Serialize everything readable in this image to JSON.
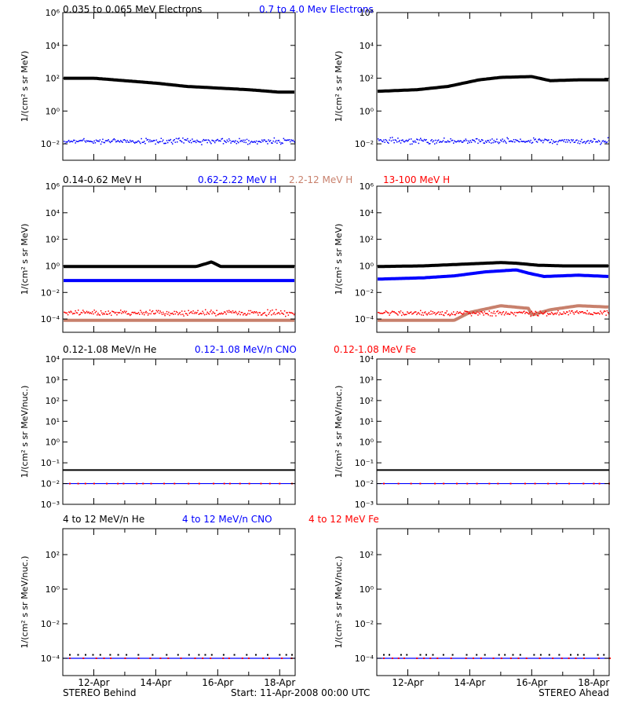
{
  "footer": {
    "left": "STEREO Behind",
    "center": "Start: 11-Apr-2008 00:00 UTC",
    "right": "STEREO Ahead"
  },
  "x_ticks": [
    "12-Apr",
    "14-Apr",
    "16-Apr",
    "18-Apr"
  ],
  "colors": {
    "black": "#000000",
    "blue": "#0000ff",
    "tan": "#c8806c",
    "red": "#ff0000"
  },
  "rows": [
    {
      "legend": [
        {
          "text": "0.035 to 0.065 MeV Electrons",
          "color": "black"
        },
        {
          "text": "0.7 to 4.0 Mev Electrons",
          "color": "blue"
        }
      ],
      "ylabel": "1/(cm² s sr MeV)",
      "ylog": [
        -3,
        6
      ],
      "yticks": [
        {
          "exp": -2,
          "label": "10⁻²"
        },
        {
          "exp": 0,
          "label": "10⁰"
        },
        {
          "exp": 2,
          "label": "10²"
        },
        {
          "exp": 4,
          "label": "10⁴"
        },
        {
          "exp": 6,
          "label": "10⁶"
        }
      ]
    },
    {
      "legend": [
        {
          "text": "0.14-0.62 MeV H",
          "color": "black"
        },
        {
          "text": "0.62-2.22 MeV H",
          "color": "blue"
        },
        {
          "text": "2.2-12 MeV H",
          "color": "tan"
        },
        {
          "text": "13-100 MeV H",
          "color": "red"
        }
      ],
      "ylabel": "1/(cm² s sr MeV)",
      "ylog": [
        -5,
        6
      ],
      "yticks": [
        {
          "exp": -4,
          "label": "10⁻⁴"
        },
        {
          "exp": -2,
          "label": "10⁻²"
        },
        {
          "exp": 0,
          "label": "10⁰"
        },
        {
          "exp": 2,
          "label": "10²"
        },
        {
          "exp": 4,
          "label": "10⁴"
        },
        {
          "exp": 6,
          "label": "10⁶"
        }
      ]
    },
    {
      "legend": [
        {
          "text": "0.12-1.08 MeV/n He",
          "color": "black"
        },
        {
          "text": "0.12-1.08 MeV/n CNO",
          "color": "blue"
        },
        {
          "text": "0.12-1.08 MeV Fe",
          "color": "red"
        }
      ],
      "ylabel": "1/(cm² s sr MeV/nuc.)",
      "ylog": [
        -3,
        4
      ],
      "yticks": [
        {
          "exp": -3,
          "label": "10⁻³"
        },
        {
          "exp": -2,
          "label": "10⁻²"
        },
        {
          "exp": -1,
          "label": "10⁻¹"
        },
        {
          "exp": 0,
          "label": "10⁰"
        },
        {
          "exp": 1,
          "label": "10¹"
        },
        {
          "exp": 2,
          "label": "10²"
        },
        {
          "exp": 3,
          "label": "10³"
        },
        {
          "exp": 4,
          "label": "10⁴"
        }
      ]
    },
    {
      "legend": [
        {
          "text": "4 to 12 MeV/n He",
          "color": "black"
        },
        {
          "text": "4 to 12 MeV/n CNO",
          "color": "blue"
        },
        {
          "text": "4 to 12 MeV Fe",
          "color": "red"
        }
      ],
      "ylabel": "1/(cm² s sr MeV/nuc.)",
      "ylog": [
        -5,
        3.5
      ],
      "yticks": [
        {
          "exp": -4,
          "label": "10⁻⁴"
        },
        {
          "exp": -2,
          "label": "10⁻²"
        },
        {
          "exp": 0,
          "label": "10⁰"
        },
        {
          "exp": 2,
          "label": "10²"
        }
      ]
    }
  ],
  "chart_data": [
    {
      "type": "scatter",
      "spacecraft": "STEREO Behind",
      "x_unit": "day of April 2008",
      "xlim": [
        11,
        18.5
      ],
      "ylog": [
        -3,
        6
      ],
      "series": [
        {
          "name": "0.035 to 0.065 MeV Electrons",
          "color": "black",
          "style": "band",
          "x": [
            11,
            12,
            13,
            14,
            15,
            16,
            17,
            18,
            18.5
          ],
          "log10y": [
            2.0,
            2.0,
            1.85,
            1.7,
            1.5,
            1.4,
            1.3,
            1.15,
            1.15
          ]
        },
        {
          "name": "0.7 to 4.0 Mev Electrons",
          "color": "blue",
          "style": "noisy",
          "x": [
            11,
            18.5
          ],
          "log10y": [
            -1.8,
            -1.8
          ]
        }
      ]
    },
    {
      "type": "scatter",
      "spacecraft": "STEREO Ahead",
      "x_unit": "day of April 2008",
      "xlim": [
        11,
        18.5
      ],
      "ylog": [
        -3,
        6
      ],
      "series": [
        {
          "name": "0.035 to 0.065 MeV Electrons",
          "color": "black",
          "style": "band",
          "x": [
            11,
            12.3,
            13.3,
            14.3,
            15.0,
            16.0,
            16.6,
            17.5,
            18.5
          ],
          "log10y": [
            1.2,
            1.3,
            1.5,
            1.9,
            2.05,
            2.1,
            1.85,
            1.9,
            1.9
          ]
        },
        {
          "name": "0.7 to 4.0 Mev Electrons",
          "color": "blue",
          "style": "noisy",
          "x": [
            11,
            18.5
          ],
          "log10y": [
            -1.8,
            -1.8
          ]
        }
      ]
    },
    {
      "type": "scatter",
      "spacecraft": "STEREO Behind",
      "x_unit": "day of April 2008",
      "xlim": [
        11,
        18.5
      ],
      "ylog": [
        -5,
        6
      ],
      "series": [
        {
          "name": "0.14-0.62 MeV H",
          "color": "black",
          "style": "band",
          "x": [
            11,
            15.3,
            15.6,
            15.8,
            16.1,
            18.5
          ],
          "log10y": [
            -0.05,
            -0.05,
            0.15,
            0.3,
            -0.05,
            -0.05
          ]
        },
        {
          "name": "0.62-2.22 MeV H",
          "color": "blue",
          "style": "band",
          "x": [
            11,
            18.5
          ],
          "log10y": [
            -1.1,
            -1.1
          ]
        },
        {
          "name": "2.2-12 MeV H",
          "color": "tan",
          "style": "band",
          "x": [
            11,
            18.5
          ],
          "log10y": [
            -4.1,
            -4.1
          ]
        },
        {
          "name": "13-100 MeV H",
          "color": "red",
          "style": "noisy",
          "x": [
            11,
            18.5
          ],
          "log10y": [
            -3.5,
            -3.5
          ]
        }
      ]
    },
    {
      "type": "scatter",
      "spacecraft": "STEREO Ahead",
      "x_unit": "day of April 2008",
      "xlim": [
        11,
        18.5
      ],
      "ylog": [
        -5,
        6
      ],
      "series": [
        {
          "name": "0.14-0.62 MeV H",
          "color": "black",
          "style": "band",
          "x": [
            11,
            12.5,
            14,
            15,
            15.5,
            16.2,
            17,
            18.5
          ],
          "log10y": [
            -0.05,
            0.0,
            0.15,
            0.25,
            0.2,
            0.05,
            0.0,
            0.0
          ]
        },
        {
          "name": "0.62-2.22 MeV H",
          "color": "blue",
          "style": "band",
          "x": [
            11,
            12.5,
            13.5,
            14.5,
            15.5,
            15.9,
            16.4,
            17.5,
            18.5
          ],
          "log10y": [
            -1.0,
            -0.9,
            -0.75,
            -0.45,
            -0.3,
            -0.55,
            -0.8,
            -0.7,
            -0.8
          ]
        },
        {
          "name": "2.2-12 MeV H",
          "color": "tan",
          "style": "band",
          "x": [
            11,
            13.5,
            14.0,
            14.5,
            15.0,
            15.9,
            16.0,
            16.6,
            17.5,
            18.5
          ],
          "log10y": [
            -4.1,
            -4.1,
            -3.5,
            -3.25,
            -3.0,
            -3.2,
            -3.7,
            -3.3,
            -3.0,
            -3.1
          ]
        },
        {
          "name": "13-100 MeV H",
          "color": "red",
          "style": "noisy",
          "x": [
            11,
            18.5
          ],
          "log10y": [
            -3.5,
            -3.5
          ]
        }
      ]
    },
    {
      "type": "scatter",
      "spacecraft": "STEREO Behind",
      "x_unit": "day of April 2008",
      "xlim": [
        11,
        18.5
      ],
      "ylog": [
        -3,
        4
      ],
      "series": [
        {
          "name": "0.12-1.08 MeV/n He",
          "color": "black",
          "style": "line",
          "x": [
            11,
            18.5
          ],
          "log10y": [
            -1.35,
            -1.35
          ]
        },
        {
          "name": "0.12-1.08 MeV/n CNO",
          "color": "blue",
          "style": "line",
          "x": [
            11,
            18.5
          ],
          "log10y": [
            -2.0,
            -2.0
          ]
        },
        {
          "name": "0.12-1.08 MeV Fe",
          "color": "red",
          "style": "sparse",
          "x": [
            11,
            18.5
          ],
          "log10y": [
            -2.0,
            -2.0
          ]
        }
      ]
    },
    {
      "type": "scatter",
      "spacecraft": "STEREO Ahead",
      "x_unit": "day of April 2008",
      "xlim": [
        11,
        18.5
      ],
      "ylog": [
        -3,
        4
      ],
      "series": [
        {
          "name": "0.12-1.08 MeV/n He",
          "color": "black",
          "style": "line",
          "x": [
            11,
            18.5
          ],
          "log10y": [
            -1.35,
            -1.35
          ]
        },
        {
          "name": "0.12-1.08 MeV/n CNO",
          "color": "blue",
          "style": "line",
          "x": [
            11,
            18.5
          ],
          "log10y": [
            -2.0,
            -2.0
          ]
        },
        {
          "name": "0.12-1.08 MeV Fe",
          "color": "red",
          "style": "sparse",
          "x": [
            11,
            18.5
          ],
          "log10y": [
            -2.0,
            -2.0
          ]
        }
      ]
    },
    {
      "type": "scatter",
      "spacecraft": "STEREO Behind",
      "x_unit": "day of April 2008",
      "xlim": [
        11,
        18.5
      ],
      "ylog": [
        -5,
        3.5
      ],
      "series": [
        {
          "name": "4 to 12 MeV/n He",
          "color": "black",
          "style": "sparse",
          "x": [
            11,
            18.5
          ],
          "log10y": [
            -3.8,
            -3.8
          ]
        },
        {
          "name": "4 to 12 MeV/n CNO",
          "color": "blue",
          "style": "line",
          "x": [
            11,
            18.5
          ],
          "log10y": [
            -4.0,
            -4.0
          ]
        },
        {
          "name": "4 to 12 MeV Fe",
          "color": "red",
          "style": "sparse",
          "x": [
            11,
            18.5
          ],
          "log10y": [
            -4.0,
            -4.0
          ]
        }
      ]
    },
    {
      "type": "scatter",
      "spacecraft": "STEREO Ahead",
      "x_unit": "day of April 2008",
      "xlim": [
        11,
        18.5
      ],
      "ylog": [
        -5,
        3.5
      ],
      "series": [
        {
          "name": "4 to 12 MeV/n He",
          "color": "black",
          "style": "sparse",
          "x": [
            11,
            18.5
          ],
          "log10y": [
            -3.8,
            -3.8
          ]
        },
        {
          "name": "4 to 12 MeV/n CNO",
          "color": "blue",
          "style": "line",
          "x": [
            11,
            18.5
          ],
          "log10y": [
            -4.0,
            -4.0
          ]
        },
        {
          "name": "4 to 12 MeV Fe",
          "color": "red",
          "style": "sparse",
          "x": [
            11,
            18.5
          ],
          "log10y": [
            -4.0,
            -4.0
          ]
        }
      ]
    }
  ]
}
